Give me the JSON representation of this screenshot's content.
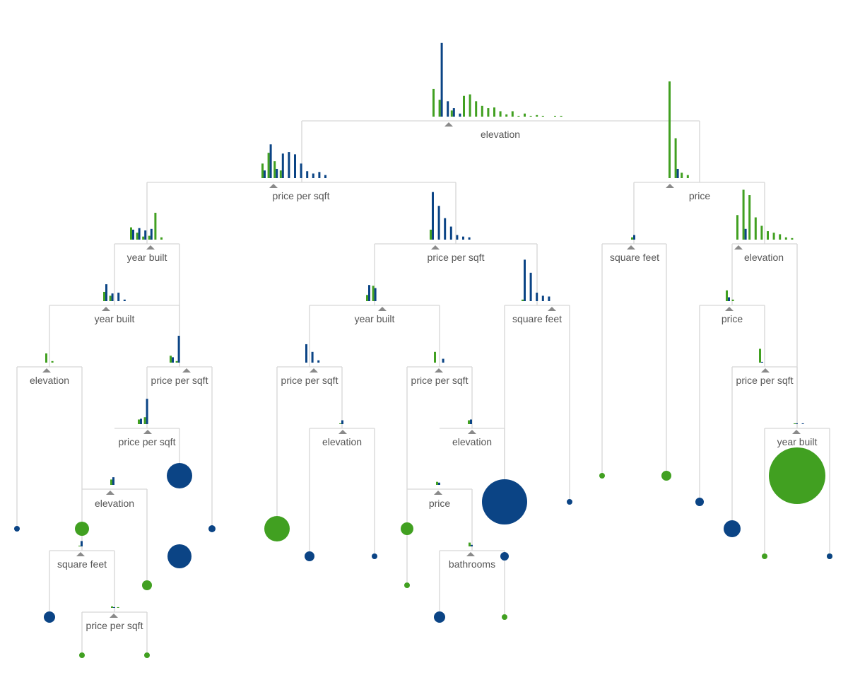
{
  "colors": {
    "blue": "#0b4485",
    "green": "#41a021",
    "edge": "#d6d6d6",
    "label": "#555555",
    "split_marker": "#8a8a8a"
  },
  "nodes": [
    {
      "id": "n0",
      "label": "elevation",
      "hist": {
        "blue": [
          0,
          96,
          20,
          11,
          4,
          0,
          0,
          0,
          0,
          0,
          0,
          0,
          0,
          0,
          0,
          0,
          0,
          0,
          0,
          0
        ],
        "green": [
          36,
          22,
          0,
          8,
          0,
          27,
          29,
          20,
          14,
          11,
          12,
          7,
          3,
          7,
          1,
          4,
          1,
          2,
          1,
          0,
          1,
          1,
          0
        ]
      }
    },
    {
      "id": "n1",
      "label": "price per sqft",
      "hist": {
        "blue": [
          10,
          44,
          12,
          32,
          34,
          31,
          19,
          9,
          6,
          8,
          4
        ],
        "green": [
          19,
          33,
          22,
          10,
          0,
          0,
          0,
          0,
          0,
          0,
          0
        ]
      }
    },
    {
      "id": "n2",
      "label": "price",
      "hist": {
        "blue": [
          0,
          12,
          0,
          0,
          0
        ],
        "green": [
          126,
          52,
          7,
          4,
          0
        ]
      }
    },
    {
      "id": "n3",
      "label": "year built",
      "hist": {
        "blue": [
          13,
          15,
          12,
          14
        ],
        "green": [
          16,
          9,
          4,
          5,
          35,
          3
        ]
      }
    },
    {
      "id": "n4",
      "label": "price per sqft",
      "hist": {
        "blue": [
          62,
          44,
          28,
          17,
          6,
          4,
          3
        ],
        "green": [
          13,
          0,
          0,
          0,
          0,
          0,
          0
        ]
      }
    },
    {
      "id": "n5",
      "label": "square feet",
      "hist": {
        "blue": [
          6
        ],
        "green": [
          3
        ]
      }
    },
    {
      "id": "n6",
      "label": "elevation",
      "hist": {
        "blue": [
          0,
          14,
          0,
          0,
          0,
          0
        ],
        "green": [
          32,
          65,
          58,
          29,
          18,
          11,
          9,
          7,
          3,
          2
        ]
      }
    },
    {
      "id": "n7",
      "label": "year built",
      "hist": {
        "blue": [
          22,
          10,
          11,
          2
        ],
        "green": [
          12,
          7
        ]
      }
    },
    {
      "id": "n8",
      "label": "year built",
      "hist": {
        "blue": [
          21,
          17
        ],
        "green": [
          8,
          20
        ]
      }
    },
    {
      "id": "n9",
      "label": "square feet",
      "hist": {
        "blue": [
          54,
          37,
          11,
          7,
          6
        ],
        "green": [
          2
        ]
      }
    },
    {
      "id": "n10",
      "label": "price",
      "hist": {
        "blue": [
          5
        ],
        "green": [
          14,
          2
        ]
      }
    },
    {
      "id": "n11",
      "label": "elevation",
      "hist": {
        "blue": [
          0
        ],
        "green": [
          12,
          2
        ]
      }
    },
    {
      "id": "n12",
      "label": "price per sqft",
      "hist": {
        "blue": [
          7,
          35
        ],
        "green": [
          9,
          2
        ]
      }
    },
    {
      "id": "n13",
      "label": "price per sqft",
      "hist": {
        "blue": [
          24,
          14,
          3
        ],
        "green": [
          0
        ]
      }
    },
    {
      "id": "n14",
      "label": "price per sqft",
      "hist": {
        "blue": [
          0,
          5
        ],
        "green": [
          14
        ]
      }
    },
    {
      "id": "n15",
      "label": "price per sqft",
      "hist": {
        "blue": [
          1
        ],
        "green": [
          18
        ]
      }
    },
    {
      "id": "n16",
      "label": "price per sqft",
      "hist": {
        "blue": [
          7,
          33
        ],
        "green": [
          6,
          9
        ]
      }
    },
    {
      "id": "n17",
      "label": "elevation",
      "hist": {
        "blue": [
          5
        ],
        "green": [
          1
        ]
      }
    },
    {
      "id": "n18",
      "label": "elevation",
      "hist": {
        "blue": [
          6
        ],
        "green": [
          5
        ]
      }
    },
    {
      "id": "n19",
      "label": "year built",
      "hist": {
        "blue": [
          1,
          1
        ],
        "green": [
          1
        ]
      }
    },
    {
      "id": "n20",
      "label": "elevation",
      "hist": {
        "blue": [
          10
        ],
        "green": [
          7
        ]
      }
    },
    {
      "id": "n21",
      "label": "price",
      "hist": {
        "blue": [
          3
        ],
        "green": [
          4
        ]
      }
    },
    {
      "id": "n22",
      "label": "square feet",
      "hist": {
        "blue": [
          7
        ],
        "green": [
          1
        ]
      }
    },
    {
      "id": "n23",
      "label": "bathrooms",
      "hist": {
        "blue": [
          2
        ],
        "green": [
          5
        ]
      }
    },
    {
      "id": "n24",
      "label": "price per sqft",
      "hist": {
        "blue": [
          1
        ],
        "green": [
          2,
          1
        ]
      }
    }
  ],
  "leaves": [
    {
      "id": "l1",
      "class": "blue",
      "count": 1
    },
    {
      "id": "l2",
      "class": "green",
      "count": 6
    },
    {
      "id": "l3",
      "class": "green",
      "count": 3
    },
    {
      "id": "l4",
      "class": "blue",
      "count": 14
    },
    {
      "id": "l5",
      "class": "blue",
      "count": 3
    },
    {
      "id": "l6",
      "class": "blue",
      "count": 2
    },
    {
      "id": "l7",
      "class": "green",
      "count": 2
    },
    {
      "id": "l8",
      "class": "green",
      "count": 16
    },
    {
      "id": "l9",
      "class": "blue",
      "count": 16
    },
    {
      "id": "l10",
      "class": "green",
      "count": 2
    },
    {
      "id": "l11",
      "class": "blue",
      "count": 18
    },
    {
      "id": "l12",
      "class": "blue",
      "count": 3
    },
    {
      "id": "l13",
      "class": "green",
      "count": 1
    },
    {
      "id": "l14",
      "class": "green",
      "count": 4
    },
    {
      "id": "l15",
      "class": "blue",
      "count": 1
    },
    {
      "id": "l16",
      "class": "green",
      "count": 3
    },
    {
      "id": "l17",
      "class": "blue",
      "count": 1
    },
    {
      "id": "l18",
      "class": "blue",
      "count": 58
    },
    {
      "id": "l19",
      "class": "blue",
      "count": 2
    },
    {
      "id": "l20",
      "class": "green",
      "count": 1
    },
    {
      "id": "l21",
      "class": "green",
      "count": 1
    },
    {
      "id": "l22",
      "class": "blue",
      "count": 3
    },
    {
      "id": "l23",
      "class": "blue",
      "count": 2
    },
    {
      "id": "l24",
      "class": "green",
      "count": 8
    },
    {
      "id": "l25",
      "class": "green",
      "count": 90
    },
    {
      "id": "l26",
      "class": "green",
      "count": 1
    },
    {
      "id": "l27",
      "class": "blue",
      "count": 1
    }
  ]
}
